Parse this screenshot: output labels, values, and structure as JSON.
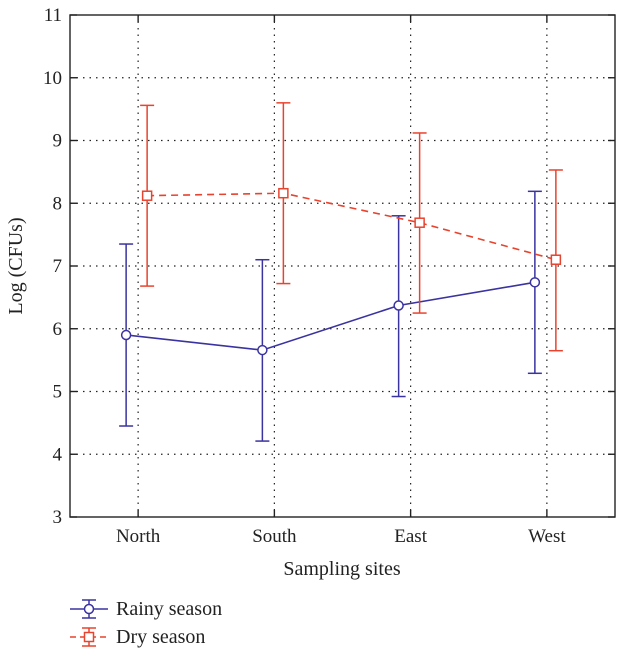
{
  "chart_data": {
    "type": "line",
    "title": "",
    "xlabel": "Sampling sites",
    "ylabel": "Log (CFUs)",
    "categories": [
      "North",
      "South",
      "East",
      "West"
    ],
    "ylim": [
      3,
      11
    ],
    "yticks": [
      3,
      4,
      5,
      6,
      7,
      8,
      9,
      10,
      11
    ],
    "grid": true,
    "legend_position": "bottom-left",
    "series": [
      {
        "name": "Rainy season",
        "color": "#3a33a0",
        "marker": "circle",
        "line_style": "solid",
        "values": [
          5.9,
          5.66,
          6.37,
          6.74
        ],
        "lower": [
          4.45,
          4.21,
          4.92,
          5.29
        ],
        "upper": [
          7.35,
          7.1,
          7.8,
          8.19
        ]
      },
      {
        "name": "Dry season",
        "color": "#e8432e",
        "marker": "square",
        "line_style": "dashed",
        "values": [
          8.12,
          8.16,
          7.69,
          7.1
        ],
        "lower": [
          6.68,
          6.72,
          6.25,
          5.65
        ],
        "upper": [
          9.56,
          9.6,
          9.12,
          8.53
        ]
      }
    ]
  }
}
